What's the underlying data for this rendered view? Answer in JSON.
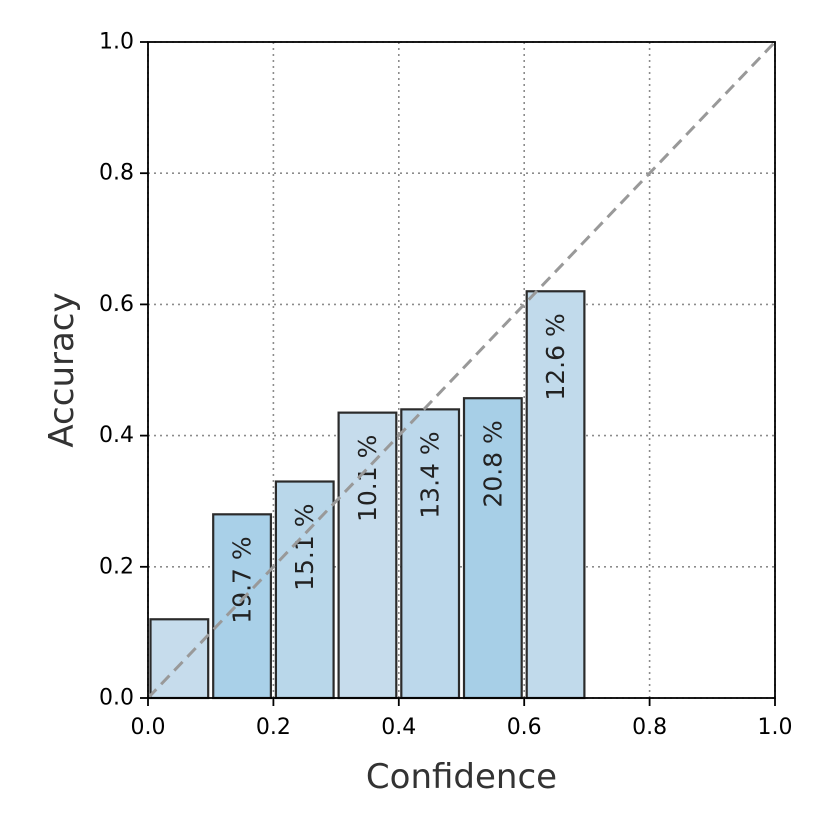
{
  "chart_data": {
    "type": "bar",
    "xlabel": "Confidence",
    "ylabel": "Accuracy",
    "xlim": [
      0.0,
      1.0
    ],
    "ylim": [
      0.0,
      1.0
    ],
    "xticks": [
      "0.0",
      "0.2",
      "0.4",
      "0.6",
      "0.8",
      "1.0"
    ],
    "yticks": [
      "0.0",
      "0.2",
      "0.4",
      "0.6",
      "0.8",
      "1.0"
    ],
    "grid": true,
    "bin_width": 0.1,
    "bins": [
      {
        "x_start": 0.0,
        "accuracy": 0.12,
        "label": "",
        "color": "#c6dcec"
      },
      {
        "x_start": 0.1,
        "accuracy": 0.28,
        "label": "19.7 %",
        "color": "#a9d0e8"
      },
      {
        "x_start": 0.2,
        "accuracy": 0.33,
        "label": "15.1 %",
        "color": "#b9d7ea"
      },
      {
        "x_start": 0.3,
        "accuracy": 0.435,
        "label": "10.1 %",
        "color": "#c6dcec"
      },
      {
        "x_start": 0.4,
        "accuracy": 0.44,
        "label": "13.4 %",
        "color": "#bcd8eb"
      },
      {
        "x_start": 0.5,
        "accuracy": 0.457,
        "label": "20.8 %",
        "color": "#a7cfe7"
      },
      {
        "x_start": 0.6,
        "accuracy": 0.62,
        "label": "12.6 %",
        "color": "#c1daeb"
      },
      {
        "x_start": 0.7,
        "accuracy": 0.0,
        "label": "",
        "color": "#c6dcec"
      },
      {
        "x_start": 0.8,
        "accuracy": 0.0,
        "label": "",
        "color": "#c6dcec"
      },
      {
        "x_start": 0.9,
        "accuracy": 0.0,
        "label": "",
        "color": "#c6dcec"
      }
    ],
    "reference_line": {
      "from": [
        0.0,
        0.0
      ],
      "to": [
        1.0,
        1.0
      ],
      "style": "dashed",
      "color": "#999999"
    }
  }
}
